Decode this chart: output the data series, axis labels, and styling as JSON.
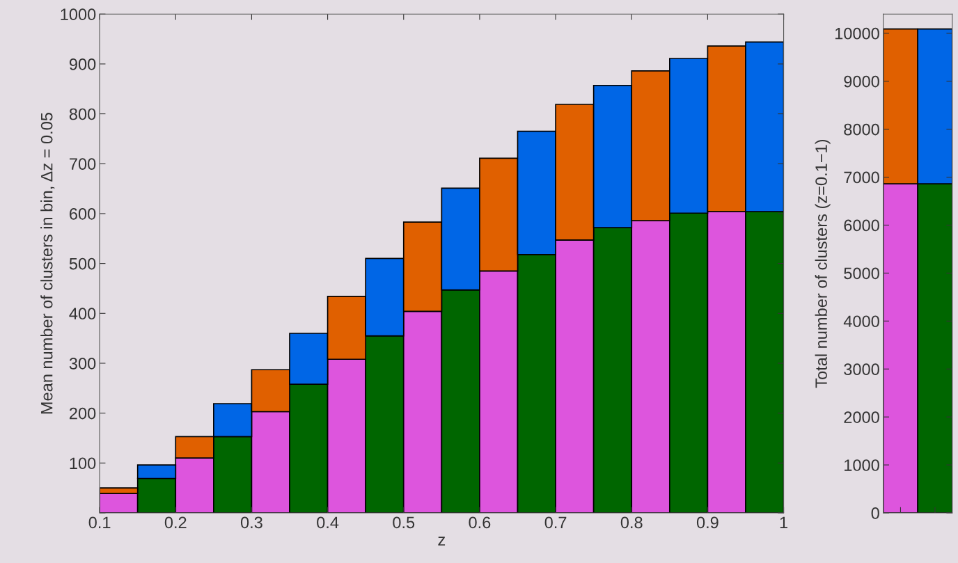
{
  "chart_data": [
    {
      "type": "bar",
      "stacked": true,
      "xlabel": "z",
      "ylabel": "Mean number of clusters in bin, Δz = 0.05",
      "x": [
        0.125,
        0.175,
        0.225,
        0.275,
        0.325,
        0.375,
        0.425,
        0.475,
        0.525,
        0.575,
        0.625,
        0.675,
        0.725,
        0.775,
        0.825,
        0.875,
        0.925,
        0.975
      ],
      "series": [
        {
          "values": [
            39,
            69,
            110,
            153,
            203,
            258,
            308,
            355,
            404,
            447,
            485,
            518,
            547,
            572,
            586,
            601,
            604,
            604
          ],
          "colors": [
            "#dd55dd",
            "#006600",
            "#dd55dd",
            "#006600",
            "#dd55dd",
            "#006600",
            "#dd55dd",
            "#006600",
            "#dd55dd",
            "#006600",
            "#dd55dd",
            "#006600",
            "#dd55dd",
            "#006600",
            "#dd55dd",
            "#006600",
            "#dd55dd",
            "#006600"
          ]
        },
        {
          "values": [
            11,
            27,
            43,
            66,
            84,
            102,
            126,
            155,
            179,
            204,
            226,
            247,
            272,
            285,
            300,
            310,
            332,
            340
          ],
          "colors": [
            "#e06000",
            "#0066e6",
            "#e06000",
            "#0066e6",
            "#e06000",
            "#0066e6",
            "#e06000",
            "#0066e6",
            "#e06000",
            "#0066e6",
            "#e06000",
            "#0066e6",
            "#e06000",
            "#0066e6",
            "#e06000",
            "#0066e6",
            "#e06000",
            "#0066e6"
          ]
        }
      ],
      "xlim": [
        0.1,
        1.0
      ],
      "xticks": [
        0.1,
        0.2,
        0.3,
        0.4,
        0.5,
        0.6,
        0.7,
        0.8,
        0.9,
        {
          "value": 1.0,
          "label": "1"
        }
      ],
      "ylim": [
        0,
        1000
      ],
      "yticks": [
        {
          "value": 0,
          "label": null
        },
        100,
        200,
        300,
        400,
        500,
        600,
        700,
        800,
        900,
        1000
      ],
      "grid": false
    },
    {
      "type": "bar",
      "stacked": true,
      "ylabel": "Total number of clusters (z=0.1−1)",
      "categories": [
        null,
        null
      ],
      "series": [
        {
          "values": [
            6860,
            6860
          ],
          "colors": [
            "#dd55dd",
            "#006600"
          ]
        },
        {
          "values": [
            3230,
            3230
          ],
          "colors": [
            "#e06000",
            "#0066e6"
          ]
        }
      ],
      "ylim": [
        0,
        10400
      ],
      "yticks": [
        0,
        1000,
        2000,
        3000,
        4000,
        5000,
        6000,
        7000,
        8000,
        9000,
        10000
      ],
      "tick_labels": "y",
      "grid": false
    }
  ]
}
